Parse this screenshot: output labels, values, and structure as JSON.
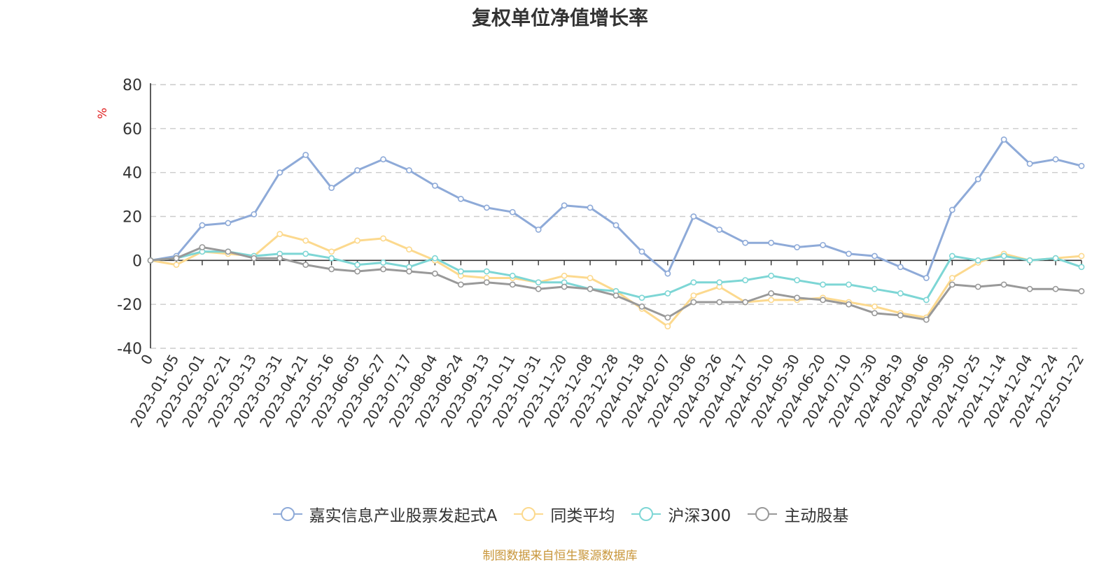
{
  "chart_data": {
    "type": "line",
    "title": "复权单位净值增长率",
    "ylabel": "%",
    "ylim": [
      -40,
      80
    ],
    "yticks": [
      "80",
      "60",
      "40",
      "20",
      "0",
      "-20",
      "-40"
    ],
    "ytick_values": [
      80,
      60,
      40,
      20,
      0,
      -20,
      -40
    ],
    "x": [
      "0",
      "2023-01-05",
      "2023-02-01",
      "2023-02-21",
      "2023-03-13",
      "2023-03-31",
      "2023-04-21",
      "2023-05-16",
      "2023-06-05",
      "2023-06-27",
      "2023-07-17",
      "2023-08-04",
      "2023-08-24",
      "2023-09-13",
      "2023-10-11",
      "2023-10-31",
      "2023-11-20",
      "2023-12-08",
      "2023-12-28",
      "2024-01-18",
      "2024-02-07",
      "2024-03-06",
      "2024-03-26",
      "2024-04-17",
      "2024-05-10",
      "2024-05-30",
      "2024-06-20",
      "2024-07-10",
      "2024-07-30",
      "2024-08-19",
      "2024-09-06",
      "2024-09-30",
      "2024-10-25",
      "2024-11-14",
      "2024-12-04",
      "2024-12-24",
      "2025-01-22"
    ],
    "series": [
      {
        "name": "嘉实信息产业股票发起式A",
        "color": "#8eaad8",
        "values": [
          0,
          2,
          16,
          17,
          21,
          40,
          48,
          33,
          41,
          46,
          41,
          34,
          28,
          24,
          22,
          14,
          25,
          24,
          16,
          4,
          -6,
          20,
          14,
          8,
          8,
          6,
          7,
          3,
          2,
          -3,
          -8,
          23,
          37,
          55,
          44,
          46,
          43
        ]
      },
      {
        "name": "同类平均",
        "color": "#fcd98e",
        "values": [
          0,
          -2,
          4,
          3,
          2,
          12,
          9,
          4,
          9,
          10,
          5,
          0,
          -7,
          -8,
          -8,
          -10,
          -7,
          -8,
          -14,
          -22,
          -30,
          -16,
          -12,
          -19,
          -18,
          -18,
          -17,
          -19,
          -21,
          -24,
          -26,
          -8,
          -1,
          3,
          0,
          1,
          2
        ]
      },
      {
        "name": "沪深300",
        "color": "#7dd6d5",
        "values": [
          0,
          1,
          4,
          4,
          2,
          3,
          3,
          1,
          -2,
          -1,
          -3,
          1,
          -5,
          -5,
          -7,
          -10,
          -10,
          -13,
          -14,
          -17,
          -15,
          -10,
          -10,
          -9,
          -7,
          -9,
          -11,
          -11,
          -13,
          -15,
          -18,
          2,
          0,
          2,
          0,
          1,
          -3
        ]
      },
      {
        "name": "主动股基",
        "color": "#999999",
        "values": [
          0,
          1,
          6,
          4,
          1,
          1,
          -2,
          -4,
          -5,
          -4,
          -5,
          -6,
          -11,
          -10,
          -11,
          -13,
          -12,
          -13,
          -16,
          -21,
          -26,
          -19,
          -19,
          -19,
          -15,
          -17,
          -18,
          -20,
          -24,
          -25,
          -27,
          -11,
          -12,
          -11,
          -13,
          -13,
          -14
        ]
      }
    ]
  },
  "source": "制图数据来自恒生聚源数据库"
}
